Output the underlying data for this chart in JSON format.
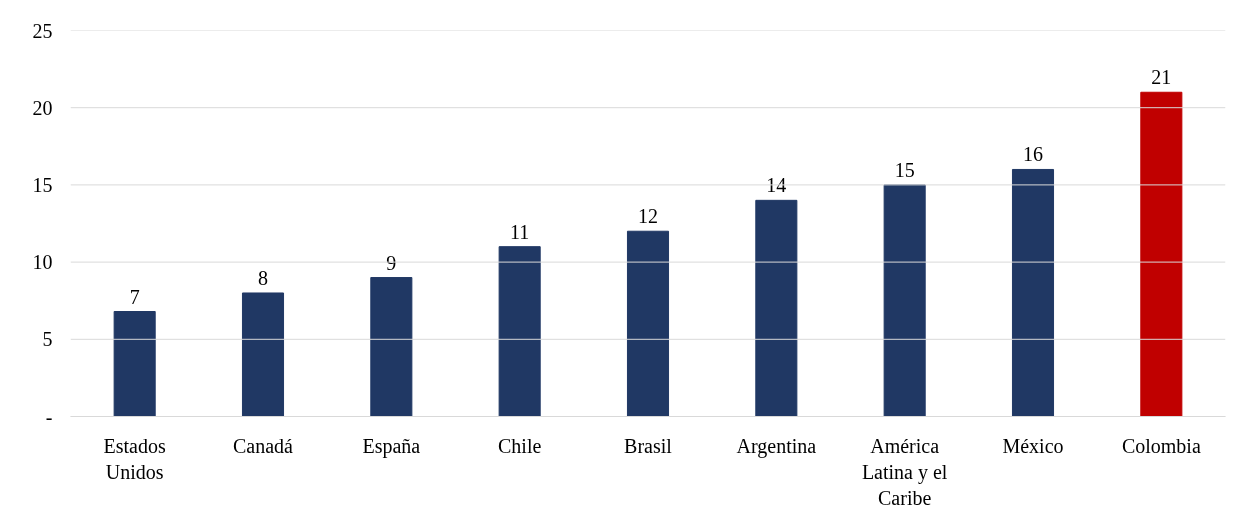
{
  "chart_data": {
    "type": "bar",
    "categories": [
      "Estados Unidos",
      "Canadá",
      "España",
      "Chile",
      "Brasil",
      "Argentina",
      "América Latina y el Caribe",
      "México",
      "Colombia"
    ],
    "values": [
      6.8,
      8,
      9,
      11,
      12,
      14,
      15,
      16,
      21
    ],
    "value_labels": [
      "7",
      "8",
      "9",
      "11",
      "12",
      "14",
      "15",
      "16",
      "21"
    ],
    "colors": [
      "#203864",
      "#203864",
      "#203864",
      "#203864",
      "#203864",
      "#203864",
      "#203864",
      "#203864",
      "#c00000"
    ],
    "ylim": [
      0,
      25
    ],
    "yticks": [
      {
        "value": 0,
        "label": "-"
      },
      5,
      10,
      15,
      20,
      25
    ],
    "grid": "y"
  }
}
